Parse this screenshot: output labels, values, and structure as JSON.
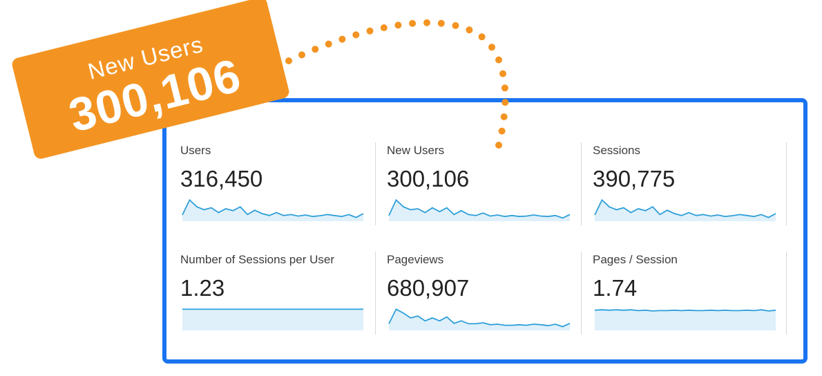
{
  "colors": {
    "frame_border": "#1a73f0",
    "callout_bg": "#f39422",
    "dots": "#f39422",
    "sparkline": "#2e9fd9",
    "sparkline_fill": "#dff0fa"
  },
  "callout": {
    "label": "New Users",
    "value": "300,106"
  },
  "metrics": [
    {
      "label": "Users",
      "value": "316,450",
      "trend": [
        0.18,
        0.95,
        0.6,
        0.45,
        0.55,
        0.3,
        0.5,
        0.4,
        0.6,
        0.2,
        0.42,
        0.25,
        0.15,
        0.3,
        0.15,
        0.2,
        0.12,
        0.18,
        0.1,
        0.14,
        0.2,
        0.15,
        0.1,
        0.2,
        0.05,
        0.25
      ]
    },
    {
      "label": "New Users",
      "value": "300,106",
      "trend": [
        0.15,
        0.95,
        0.6,
        0.45,
        0.5,
        0.3,
        0.55,
        0.35,
        0.55,
        0.2,
        0.4,
        0.2,
        0.15,
        0.28,
        0.12,
        0.18,
        0.1,
        0.15,
        0.1,
        0.12,
        0.18,
        0.12,
        0.1,
        0.15,
        0.02,
        0.2
      ]
    },
    {
      "label": "Sessions",
      "value": "390,775",
      "trend": [
        0.18,
        0.95,
        0.6,
        0.45,
        0.55,
        0.3,
        0.5,
        0.4,
        0.6,
        0.2,
        0.42,
        0.25,
        0.15,
        0.3,
        0.15,
        0.2,
        0.12,
        0.18,
        0.1,
        0.14,
        0.2,
        0.15,
        0.1,
        0.2,
        0.05,
        0.25
      ]
    },
    {
      "label": "Number of Sessions per User",
      "value": "1.23",
      "trend": [
        0.95,
        0.95,
        0.95,
        0.95,
        0.95,
        0.95,
        0.95,
        0.95,
        0.95,
        0.95,
        0.95,
        0.95,
        0.95,
        0.95,
        0.95,
        0.95,
        0.95,
        0.95,
        0.95,
        0.95,
        0.95,
        0.95,
        0.95,
        0.95,
        0.95,
        0.95
      ]
    },
    {
      "label": "Pageviews",
      "value": "680,907",
      "trend": [
        0.2,
        0.95,
        0.75,
        0.5,
        0.6,
        0.35,
        0.5,
        0.35,
        0.55,
        0.22,
        0.35,
        0.2,
        0.2,
        0.25,
        0.15,
        0.18,
        0.12,
        0.12,
        0.15,
        0.12,
        0.18,
        0.15,
        0.1,
        0.18,
        0.05,
        0.22
      ]
    },
    {
      "label": "Pages / Session",
      "value": "1.74",
      "trend": [
        0.9,
        0.92,
        0.9,
        0.92,
        0.9,
        0.92,
        0.88,
        0.9,
        0.86,
        0.88,
        0.88,
        0.9,
        0.88,
        0.9,
        0.88,
        0.88,
        0.9,
        0.88,
        0.9,
        0.88,
        0.88,
        0.9,
        0.88,
        0.92,
        0.86,
        0.9
      ]
    }
  ]
}
